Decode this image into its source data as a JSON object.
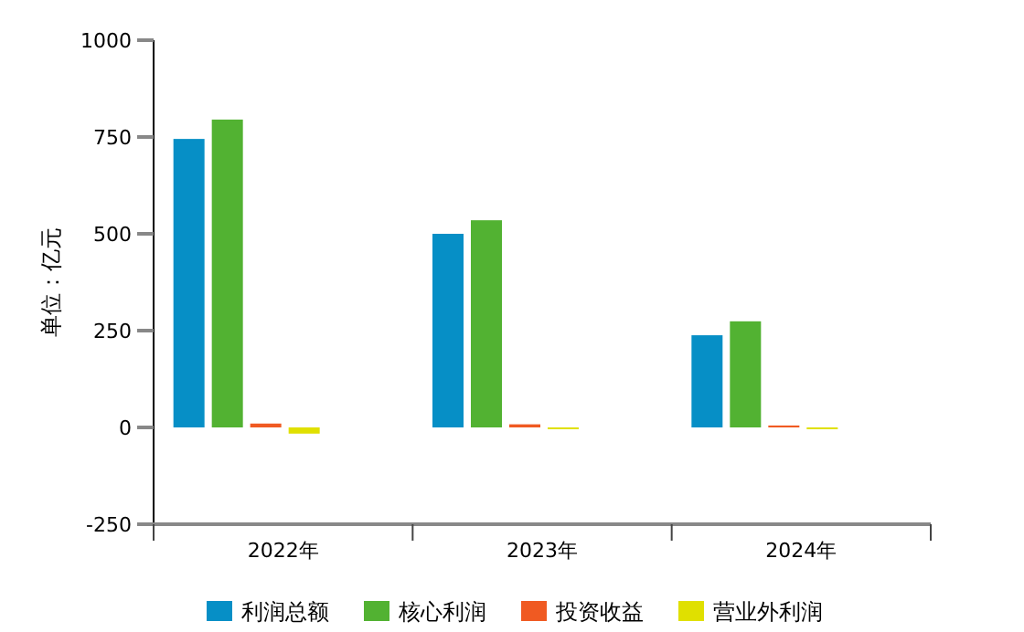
{
  "chart_data": {
    "type": "bar",
    "ylabel": "单位：亿元",
    "categories": [
      "2022年",
      "2023年",
      "2024年"
    ],
    "series": [
      {
        "name": "利润总额",
        "color": "#068fc6",
        "values": [
          745,
          500,
          238
        ]
      },
      {
        "name": "核心利润",
        "color": "#52b232",
        "values": [
          795,
          535,
          274
        ]
      },
      {
        "name": "投资收益",
        "color": "#f05a22",
        "values": [
          10,
          8,
          5
        ]
      },
      {
        "name": "营业外利润",
        "color": "#e0e000",
        "values": [
          -16,
          -2,
          -1
        ]
      }
    ],
    "ylim": [
      -250,
      1000
    ],
    "yticks": [
      -250,
      0,
      250,
      500,
      750,
      1000
    ],
    "grid": false,
    "legend": "bottom"
  }
}
